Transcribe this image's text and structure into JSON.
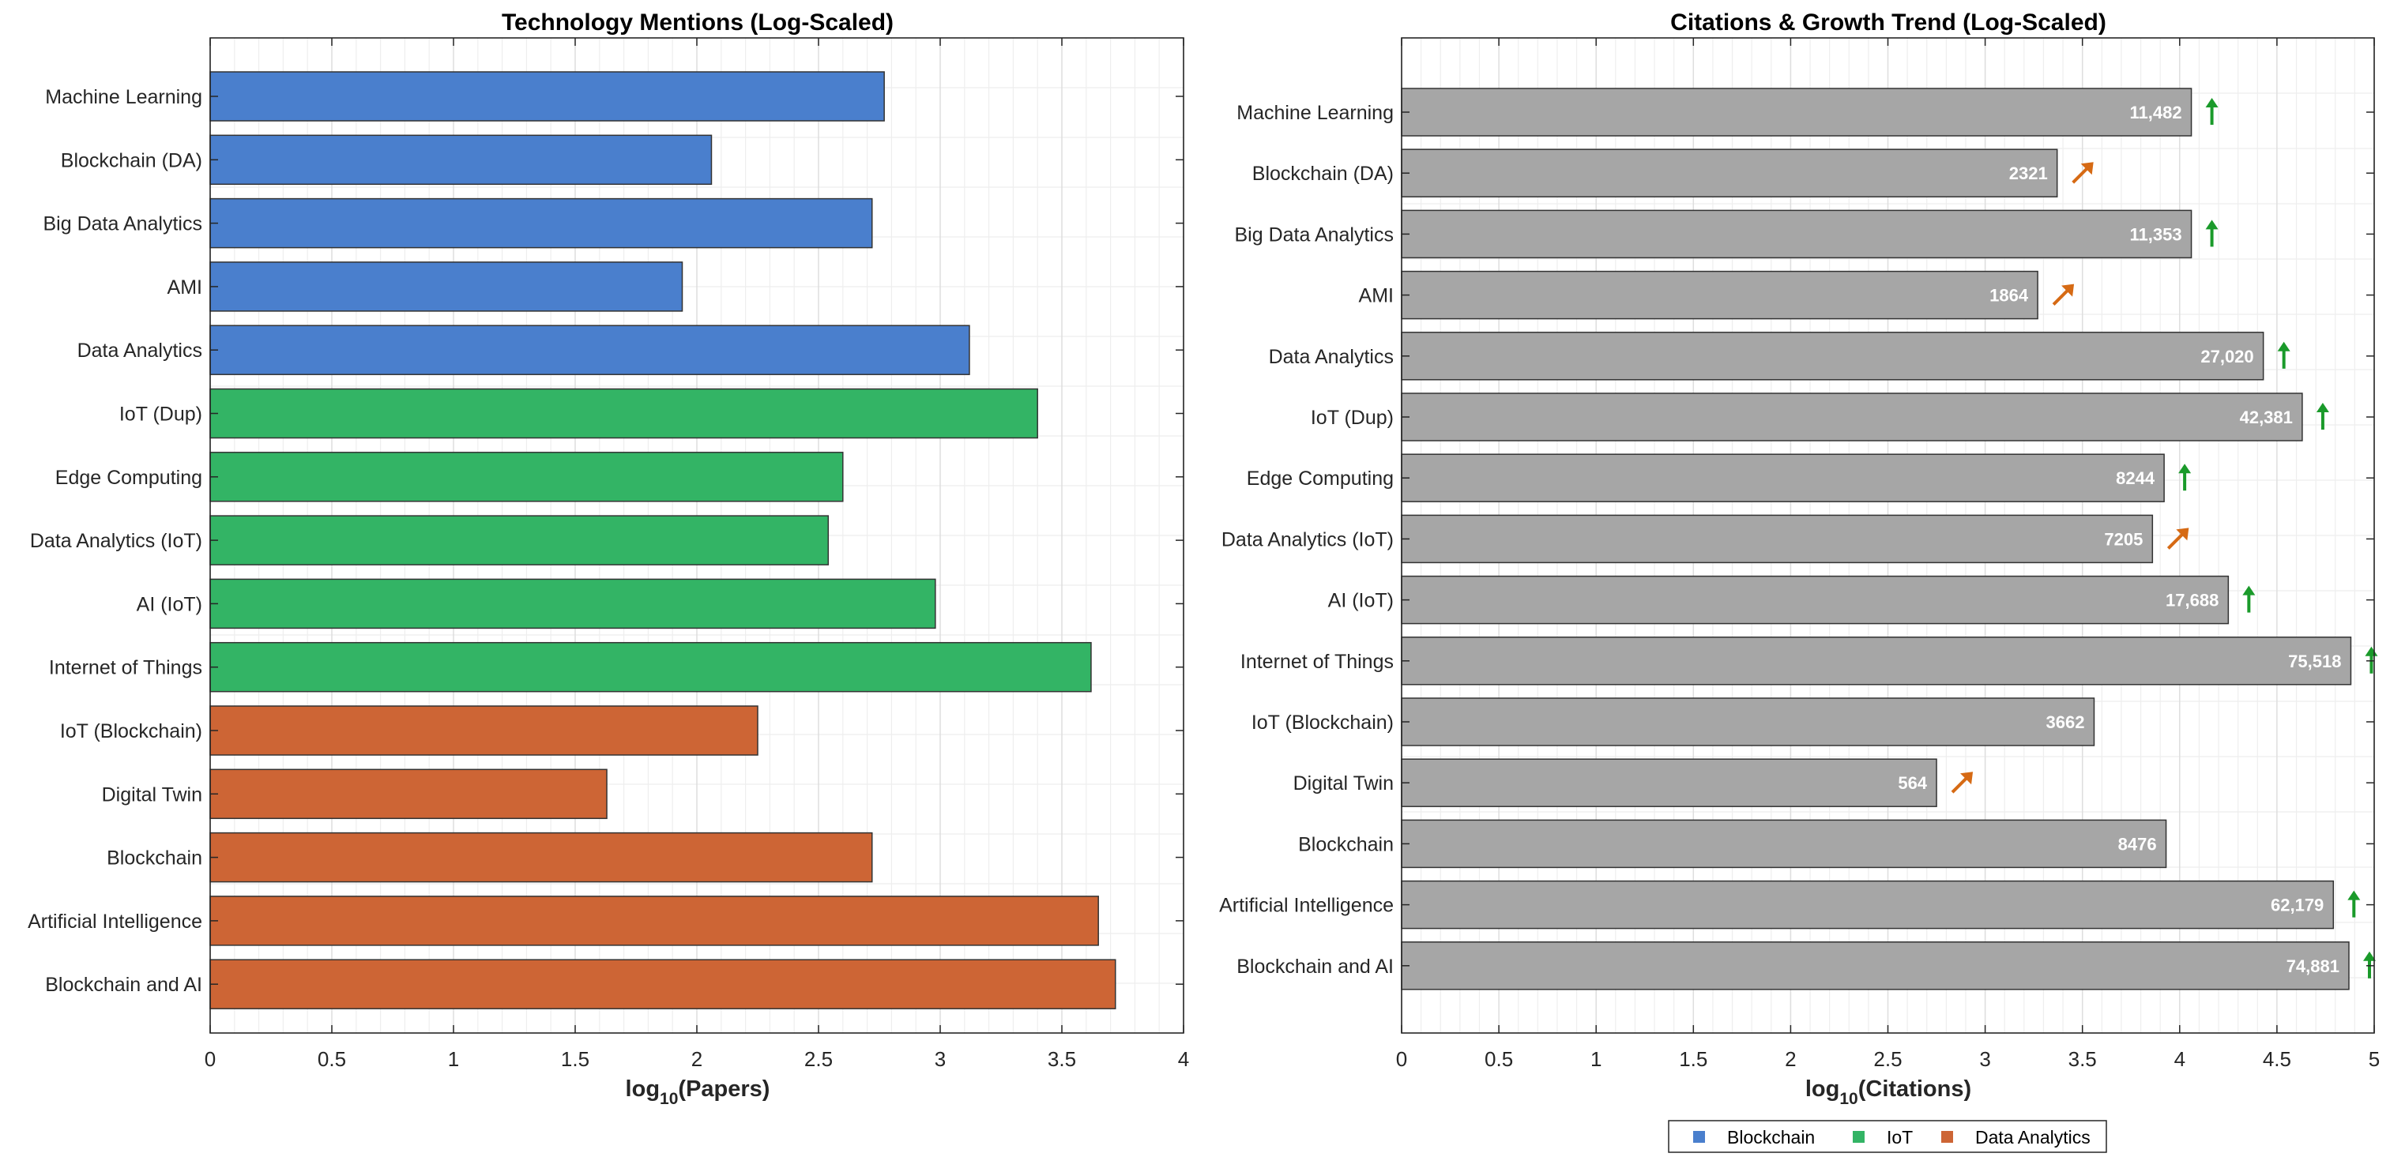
{
  "chart_data": [
    {
      "type": "bar",
      "orientation": "horizontal",
      "title": "Technology Mentions (Log-Scaled)",
      "xlabel_main": "log",
      "xlabel_sub": "10",
      "xlabel_tail": "(Papers)",
      "xlim": [
        0,
        4
      ],
      "xticks": [
        "0",
        "0.5",
        "1",
        "1.5",
        "2",
        "2.5",
        "3",
        "3.5",
        "4"
      ],
      "grid": true,
      "categories": [
        "Machine Learning",
        "Blockchain (DA)",
        "Big Data Analytics",
        "AMI",
        "Data Analytics",
        "IoT (Dup)",
        "Edge Computing",
        "Data Analytics (IoT)",
        "AI (IoT)",
        "Internet of Things",
        "IoT (Blockchain)",
        "Digital Twin",
        "Blockchain",
        "Artificial Intelligence",
        "Blockchain and AI"
      ],
      "values": [
        2.77,
        2.06,
        2.72,
        1.94,
        3.12,
        3.4,
        2.6,
        2.54,
        2.98,
        3.62,
        2.25,
        1.63,
        2.72,
        3.65,
        3.72
      ],
      "groups": [
        "blockchain",
        "blockchain",
        "blockchain",
        "blockchain",
        "blockchain",
        "iot",
        "iot",
        "iot",
        "iot",
        "iot",
        "analytics",
        "analytics",
        "analytics",
        "analytics",
        "analytics"
      ]
    },
    {
      "type": "bar",
      "orientation": "horizontal",
      "title": "Citations & Growth Trend (Log-Scaled)",
      "xlabel_main": "log",
      "xlabel_sub": "10",
      "xlabel_tail": "(Citations)",
      "xlim": [
        0,
        5
      ],
      "xticks": [
        "0",
        "0.5",
        "1",
        "1.5",
        "2",
        "2.5",
        "3",
        "3.5",
        "4",
        "4.5",
        "5"
      ],
      "grid": true,
      "categories": [
        "Machine Learning",
        "Blockchain (DA)",
        "Big Data Analytics",
        "AMI",
        "Data Analytics",
        "IoT (Dup)",
        "Edge Computing",
        "Data Analytics (IoT)",
        "AI (IoT)",
        "Internet of Things",
        "IoT (Blockchain)",
        "Digital Twin",
        "Blockchain",
        "Artificial Intelligence",
        "Blockchain and AI"
      ],
      "values": [
        4.06,
        3.37,
        4.06,
        3.27,
        4.43,
        4.63,
        3.92,
        3.86,
        4.25,
        4.88,
        3.56,
        2.75,
        3.93,
        4.79,
        4.87
      ],
      "value_labels": [
        "11,482",
        "2321",
        "11,353",
        "1864",
        "27,020",
        "42,381",
        "8244",
        "7205",
        "17,688",
        "75,518",
        "3662",
        "564",
        "8476",
        "62,179",
        "74,881"
      ],
      "trend": [
        "up",
        "diag",
        "up",
        "diag",
        "up",
        "up",
        "up",
        "diag",
        "up",
        "up",
        "none",
        "diag",
        "none",
        "up",
        "up"
      ]
    }
  ],
  "legend": {
    "placement": "bottom-right",
    "items": [
      {
        "key": "blockchain",
        "label": "Blockchain"
      },
      {
        "key": "iot",
        "label": "IoT"
      },
      {
        "key": "analytics",
        "label": "Data Analytics"
      }
    ]
  },
  "colors": {
    "blockchain": "#4a7fcd",
    "iot": "#33b465",
    "analytics": "#cd6535",
    "citation_bar": "#a6a6a6",
    "trend_up": "#1a9a2a",
    "trend_diag": "#d66a14",
    "axis": "#262626",
    "grid_major": "#dedede",
    "grid_minor": "#eeeeee"
  }
}
